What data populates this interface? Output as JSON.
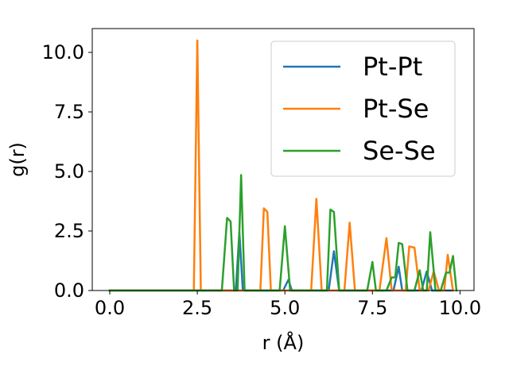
{
  "chart_data": {
    "type": "line",
    "xlabel": "r (Å)",
    "ylabel": "g(r)",
    "xlim": [
      -0.5,
      10.4
    ],
    "ylim": [
      0,
      11
    ],
    "xticks": [
      0.0,
      2.5,
      5.0,
      7.5,
      10.0
    ],
    "xtick_labels": [
      "0.0",
      "2.5",
      "5.0",
      "7.5",
      "10.0"
    ],
    "yticks": [
      0.0,
      2.5,
      5.0,
      7.5,
      10.0
    ],
    "ytick_labels": [
      "0.0",
      "2.5",
      "5.0",
      "7.5",
      "10.0"
    ],
    "grid": false,
    "legend_position": "top-right",
    "series": [
      {
        "name": "Pt-Pt",
        "color": "#1f77b4",
        "x": [
          0.0,
          3.6,
          3.7,
          3.8,
          4.95,
          5.1,
          5.2,
          6.25,
          6.4,
          6.55,
          8.1,
          8.25,
          8.35,
          8.9,
          9.05,
          9.2,
          9.3,
          9.8
        ],
        "y": [
          0.0,
          0.0,
          2.45,
          0.0,
          0.0,
          0.45,
          0.0,
          0.0,
          1.65,
          0.0,
          0.0,
          1.0,
          0.0,
          0.0,
          0.8,
          0.0,
          0.0,
          0.0
        ]
      },
      {
        "name": "Pt-Se",
        "color": "#ff7f0e",
        "x": [
          0.0,
          2.4,
          2.5,
          2.6,
          4.3,
          4.4,
          4.5,
          4.6,
          5.75,
          5.9,
          6.05,
          6.7,
          6.85,
          7.0,
          7.7,
          7.9,
          8.05,
          8.45,
          8.55,
          8.7,
          8.85,
          9.1,
          9.25,
          9.4,
          9.55,
          9.65,
          9.8
        ],
        "y": [
          0.0,
          0.0,
          10.5,
          0.0,
          0.0,
          3.45,
          3.3,
          0.0,
          0.0,
          3.85,
          0.0,
          0.0,
          2.85,
          0.0,
          0.0,
          2.2,
          0.0,
          0.0,
          1.85,
          1.8,
          0.0,
          0.0,
          0.8,
          0.0,
          0.0,
          1.5,
          0.0
        ]
      },
      {
        "name": "Se-Se",
        "color": "#2ca02c",
        "x": [
          0.0,
          3.2,
          3.35,
          3.45,
          3.55,
          3.65,
          3.75,
          3.85,
          4.85,
          5.0,
          5.15,
          6.2,
          6.3,
          6.4,
          6.55,
          7.35,
          7.5,
          7.6,
          7.9,
          8.05,
          8.15,
          8.25,
          8.35,
          8.5,
          8.7,
          8.85,
          8.95,
          9.05,
          9.15,
          9.3,
          9.45,
          9.6,
          9.7,
          9.8,
          9.9
        ],
        "y": [
          0.0,
          0.0,
          3.05,
          2.9,
          0.0,
          0.0,
          4.85,
          0.0,
          0.0,
          2.7,
          0.0,
          0.0,
          3.4,
          3.3,
          0.0,
          0.0,
          1.2,
          0.0,
          0.0,
          0.55,
          0.55,
          2.0,
          1.95,
          0.0,
          0.0,
          0.85,
          0.0,
          0.0,
          2.45,
          0.0,
          0.0,
          0.75,
          0.75,
          1.45,
          0.0
        ]
      }
    ]
  }
}
